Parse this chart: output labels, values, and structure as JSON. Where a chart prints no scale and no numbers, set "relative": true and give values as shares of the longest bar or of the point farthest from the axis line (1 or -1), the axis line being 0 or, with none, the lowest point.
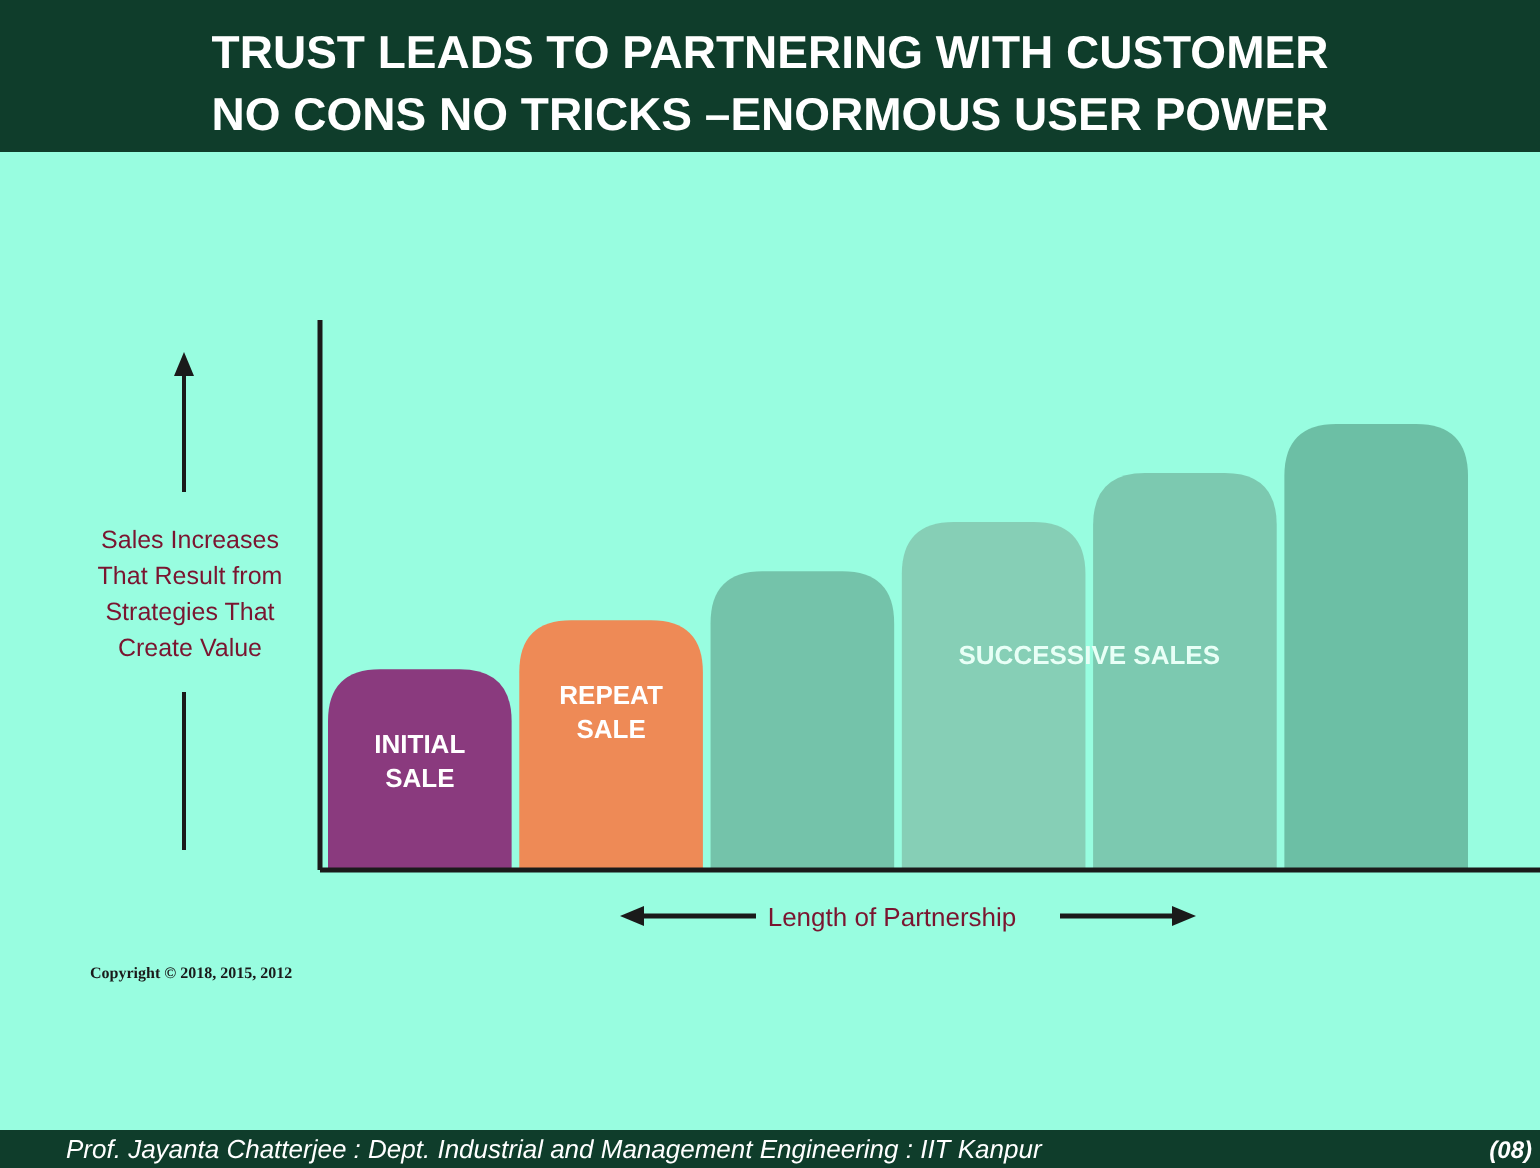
{
  "chart_data": {
    "type": "bar",
    "title": "TRUST LEADS TO PARTNERING WITH CUSTOMER",
    "subtitle": "NO CONS NO TRICKS –ENORMOUS USER POWER",
    "ylabel": "Sales Increases That Result from Strategies That Create Value",
    "xlabel": "Length of Partnership",
    "relative": true,
    "categories": [
      "INITIAL SALE",
      "REPEAT SALE",
      null,
      null,
      null,
      null
    ],
    "values": [
      0.45,
      0.56,
      0.67,
      0.78,
      0.89,
      1
    ],
    "colors": [
      "#8a3a7e",
      "#ee8a56",
      "#74c3aa",
      "#86cfb6",
      "#7cc9b0",
      "#6cbfa5"
    ],
    "annotations": [
      {
        "text": "SUCCESSIVE SALES"
      },
      "Copyright © 2018, 2015, 2012",
      "Prof. Jayanta Chatterjee : Dept. Industrial and Management Engineering : IIT Kanpur",
      "(08)"
    ]
  }
}
